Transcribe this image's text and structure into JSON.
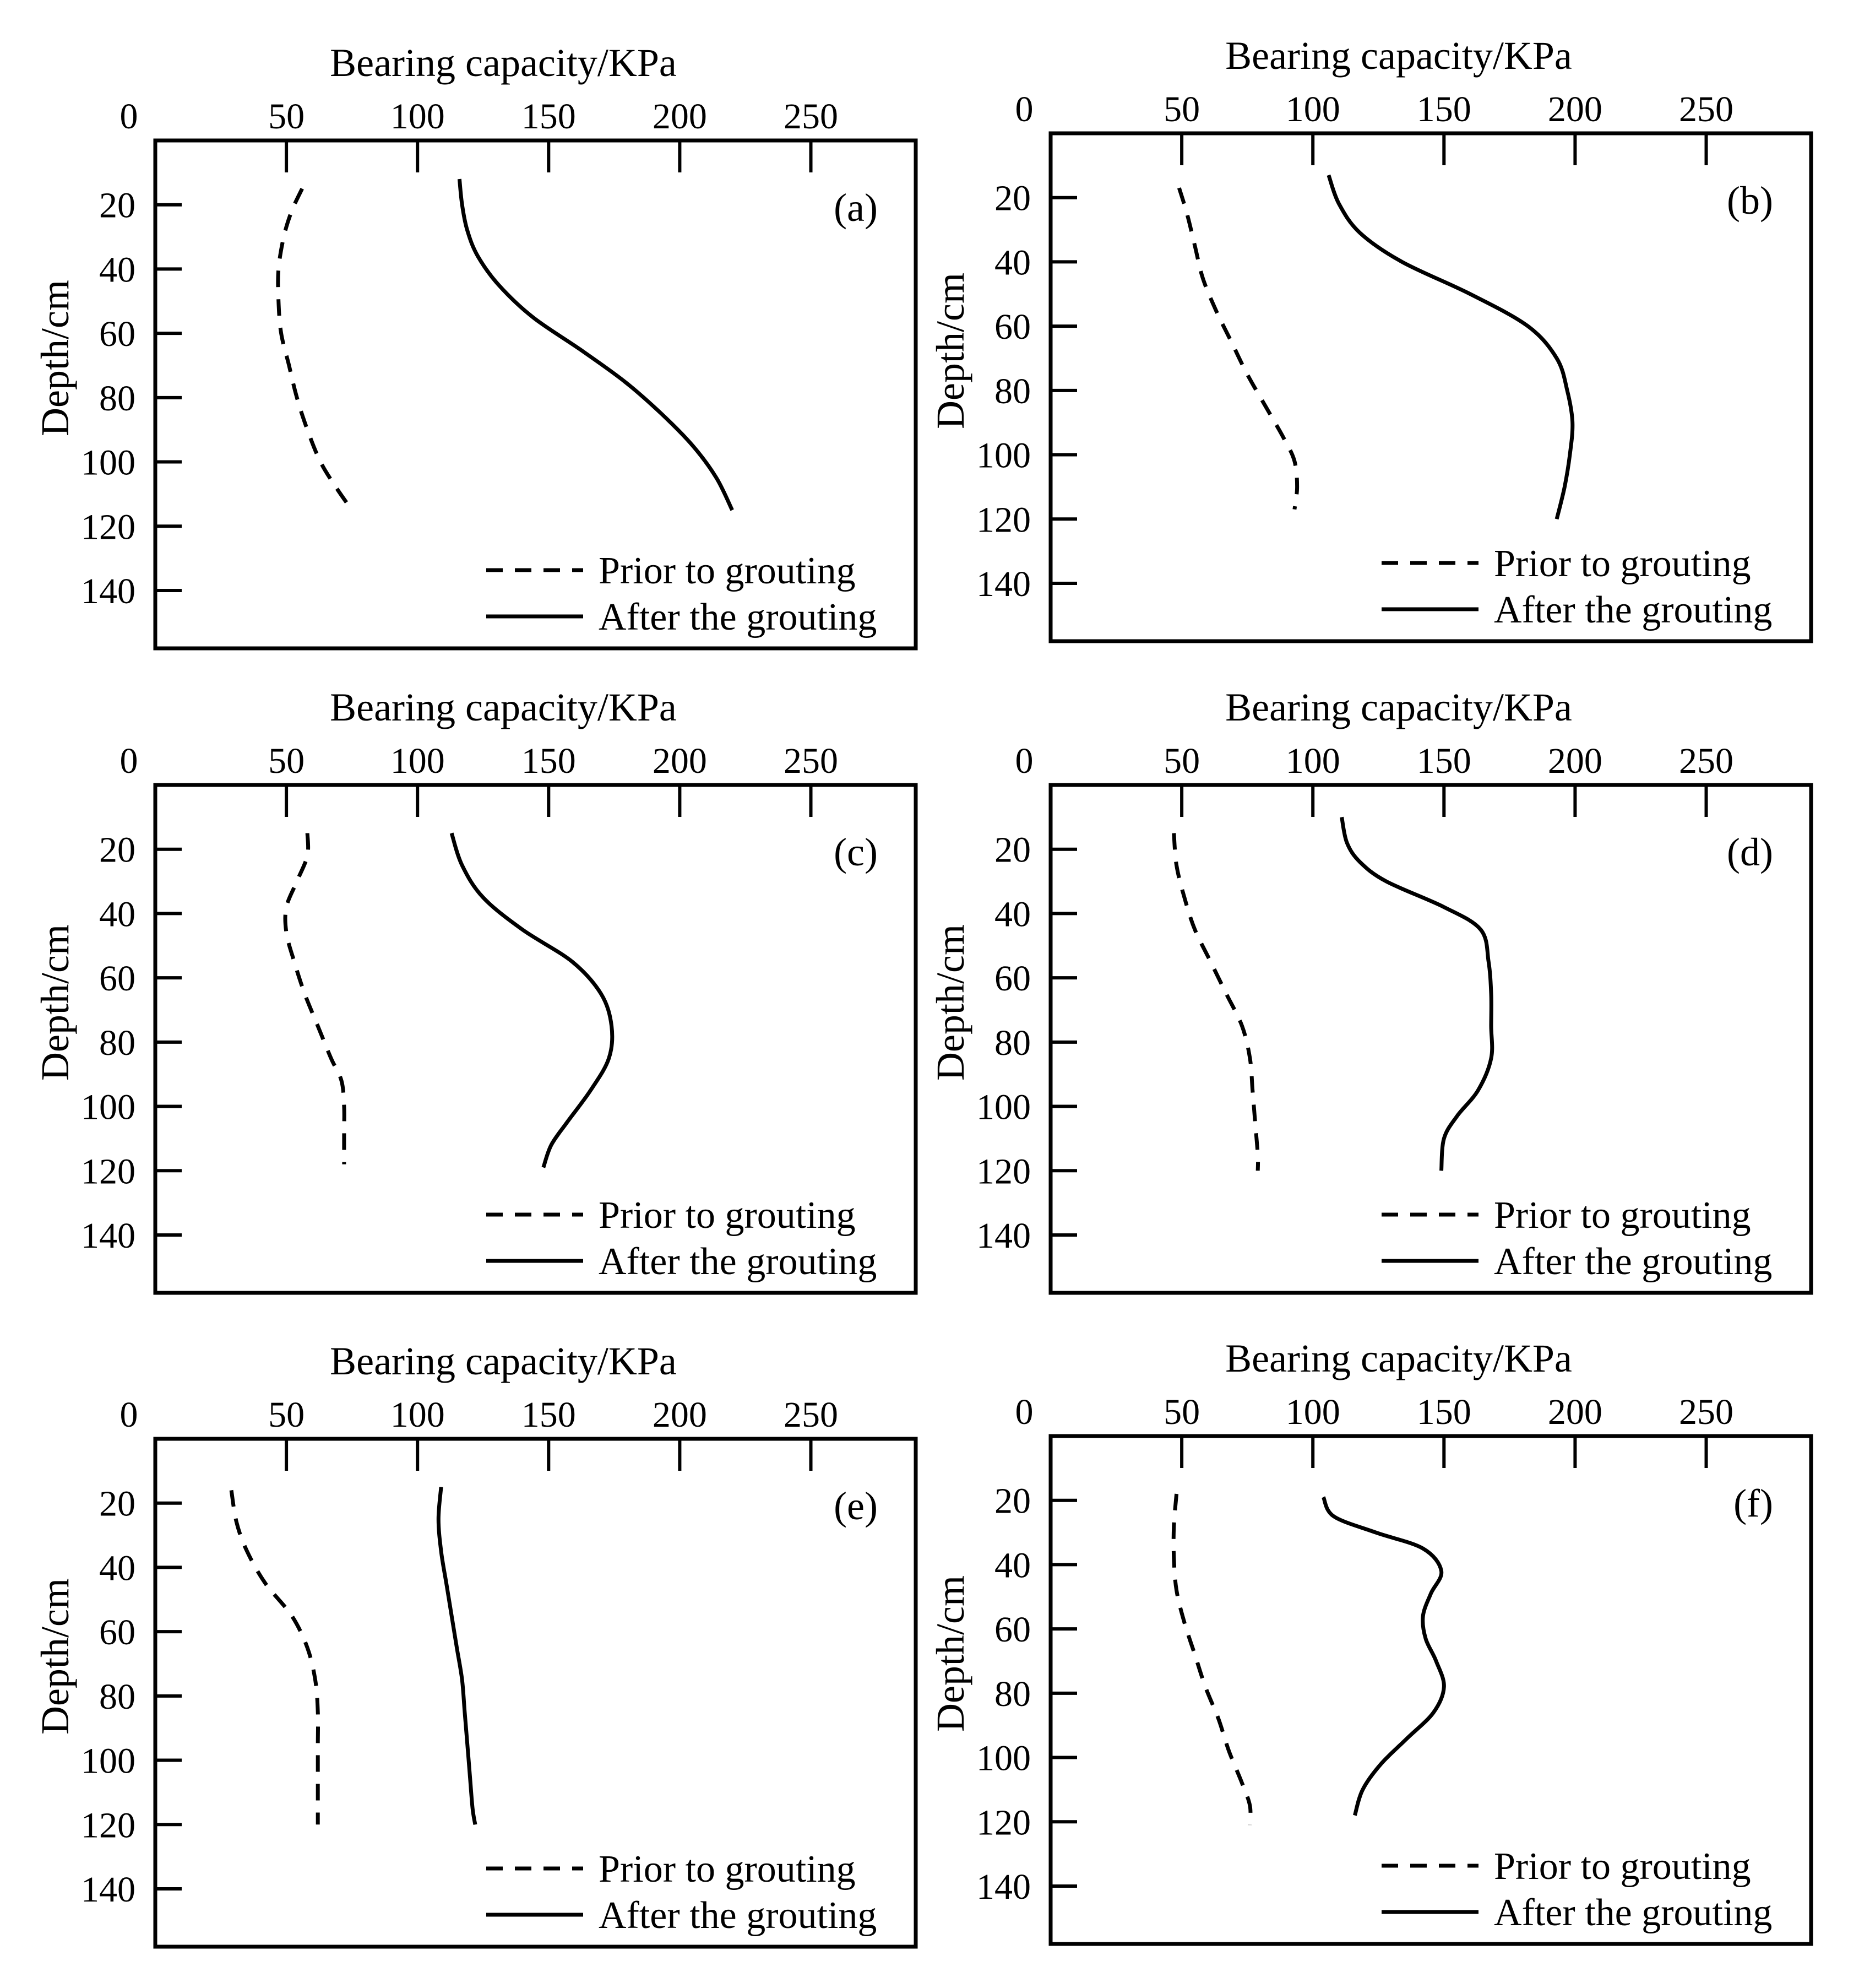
{
  "chart_data": [
    {
      "type": "line",
      "panel_label": "(a)",
      "xlabel": "Bearing capacity/KPa",
      "ylabel": "Depth/cm",
      "x_ticks": [
        0,
        50,
        100,
        150,
        200,
        250
      ],
      "y_ticks": [
        20,
        40,
        60,
        80,
        100,
        120,
        140
      ],
      "xlim": [
        0,
        290
      ],
      "ylim": [
        0,
        158
      ],
      "x_axis_position": "top",
      "y_inverted": true,
      "series": [
        {
          "name": "Prior to grouting",
          "style": "dashed",
          "points": [
            [
              56,
              15
            ],
            [
              52,
              22
            ],
            [
              49,
              30
            ],
            [
              47,
              40
            ],
            [
              47,
              50
            ],
            [
              48,
              60
            ],
            [
              51,
              70
            ],
            [
              54,
              80
            ],
            [
              58,
              90
            ],
            [
              63,
              100
            ],
            [
              69,
              108
            ],
            [
              75,
              115
            ]
          ]
        },
        {
          "name": "After the grouting",
          "style": "solid",
          "points": [
            [
              116,
              12
            ],
            [
              117,
              20
            ],
            [
              119,
              28
            ],
            [
              123,
              36
            ],
            [
              131,
              45
            ],
            [
              144,
              55
            ],
            [
              162,
              65
            ],
            [
              179,
              75
            ],
            [
              193,
              85
            ],
            [
              205,
              95
            ],
            [
              214,
              105
            ],
            [
              220,
              115
            ]
          ]
        }
      ]
    },
    {
      "type": "line",
      "panel_label": "(b)",
      "xlabel": "Bearing capacity/KPa",
      "ylabel": "Depth/cm",
      "x_ticks": [
        0,
        50,
        100,
        150,
        200,
        250
      ],
      "y_ticks": [
        20,
        40,
        60,
        80,
        100,
        120,
        140
      ],
      "xlim": [
        0,
        290
      ],
      "ylim": [
        0,
        158
      ],
      "x_axis_position": "top",
      "y_inverted": true,
      "series": [
        {
          "name": "Prior to grouting",
          "style": "dashed",
          "points": [
            [
              49,
              17
            ],
            [
              52,
              25
            ],
            [
              55,
              35
            ],
            [
              58,
              45
            ],
            [
              63,
              55
            ],
            [
              69,
              65
            ],
            [
              75,
              75
            ],
            [
              82,
              85
            ],
            [
              89,
              95
            ],
            [
              93,
              102
            ],
            [
              94,
              110
            ],
            [
              93,
              117
            ]
          ]
        },
        {
          "name": "After the grouting",
          "style": "solid",
          "points": [
            [
              106,
              13
            ],
            [
              110,
              22
            ],
            [
              118,
              31
            ],
            [
              134,
              40
            ],
            [
              160,
              50
            ],
            [
              182,
              60
            ],
            [
              193,
              70
            ],
            [
              197,
              80
            ],
            [
              199,
              90
            ],
            [
              198,
              100
            ],
            [
              196,
              110
            ],
            [
              193,
              120
            ]
          ]
        }
      ]
    },
    {
      "type": "line",
      "panel_label": "(c)",
      "xlabel": "Bearing capacity/KPa",
      "ylabel": "Depth/cm",
      "x_ticks": [
        0,
        50,
        100,
        150,
        200,
        250
      ],
      "y_ticks": [
        20,
        40,
        60,
        80,
        100,
        120,
        140
      ],
      "xlim": [
        0,
        290
      ],
      "ylim": [
        0,
        158
      ],
      "x_axis_position": "top",
      "y_inverted": true,
      "series": [
        {
          "name": "Prior to grouting",
          "style": "dashed",
          "points": [
            [
              58,
              15
            ],
            [
              58,
              22
            ],
            [
              54,
              30
            ],
            [
              50,
              38
            ],
            [
              50,
              46
            ],
            [
              53,
              55
            ],
            [
              57,
              65
            ],
            [
              62,
              75
            ],
            [
              67,
              85
            ],
            [
              71,
              92
            ],
            [
              72,
              100
            ],
            [
              72,
              108
            ],
            [
              72,
              118
            ]
          ]
        },
        {
          "name": "After the grouting",
          "style": "solid",
          "points": [
            [
              113,
              15
            ],
            [
              117,
              25
            ],
            [
              125,
              35
            ],
            [
              140,
              45
            ],
            [
              159,
              55
            ],
            [
              170,
              65
            ],
            [
              174,
              75
            ],
            [
              173,
              85
            ],
            [
              166,
              95
            ],
            [
              157,
              105
            ],
            [
              151,
              112
            ],
            [
              148,
              119
            ]
          ]
        }
      ]
    },
    {
      "type": "line",
      "panel_label": "(d)",
      "xlabel": "Bearing capacity/KPa",
      "ylabel": "Depth/cm",
      "x_ticks": [
        0,
        50,
        100,
        150,
        200,
        250
      ],
      "y_ticks": [
        20,
        40,
        60,
        80,
        100,
        120,
        140
      ],
      "xlim": [
        0,
        290
      ],
      "ylim": [
        0,
        158
      ],
      "x_axis_position": "top",
      "y_inverted": true,
      "series": [
        {
          "name": "Prior to grouting",
          "style": "dashed",
          "points": [
            [
              47,
              15
            ],
            [
              48,
              25
            ],
            [
              51,
              35
            ],
            [
              55,
              45
            ],
            [
              61,
              55
            ],
            [
              67,
              65
            ],
            [
              73,
              75
            ],
            [
              76,
              85
            ],
            [
              77,
              95
            ],
            [
              78,
              105
            ],
            [
              79,
              115
            ],
            [
              79,
              120
            ]
          ]
        },
        {
          "name": "After the grouting",
          "style": "solid",
          "points": [
            [
              111,
              10
            ],
            [
              113,
              18
            ],
            [
              118,
              24
            ],
            [
              128,
              30
            ],
            [
              150,
              38
            ],
            [
              164,
              45
            ],
            [
              167,
              55
            ],
            [
              168,
              65
            ],
            [
              168,
              75
            ],
            [
              168,
              85
            ],
            [
              163,
              95
            ],
            [
              155,
              103
            ],
            [
              150,
              110
            ],
            [
              149,
              120
            ]
          ]
        }
      ]
    },
    {
      "type": "line",
      "panel_label": "(e)",
      "xlabel": "Bearing capacity/KPa",
      "ylabel": "Depth/cm",
      "x_ticks": [
        0,
        50,
        100,
        150,
        200,
        250
      ],
      "y_ticks": [
        20,
        40,
        60,
        80,
        100,
        120,
        140
      ],
      "xlim": [
        0,
        290
      ],
      "ylim": [
        0,
        158
      ],
      "x_axis_position": "top",
      "y_inverted": true,
      "series": [
        {
          "name": "Prior to grouting",
          "style": "dashed",
          "points": [
            [
              29,
              16
            ],
            [
              31,
              26
            ],
            [
              35,
              35
            ],
            [
              42,
              45
            ],
            [
              52,
              55
            ],
            [
              58,
              65
            ],
            [
              61,
              75
            ],
            [
              62,
              85
            ],
            [
              62,
              95
            ],
            [
              62,
              105
            ],
            [
              62,
              115
            ],
            [
              62,
              120
            ]
          ]
        },
        {
          "name": "After the grouting",
          "style": "solid",
          "points": [
            [
              109,
              15
            ],
            [
              108,
              25
            ],
            [
              109,
              35
            ],
            [
              111,
              45
            ],
            [
              113,
              55
            ],
            [
              115,
              65
            ],
            [
              117,
              75
            ],
            [
              118,
              85
            ],
            [
              119,
              95
            ],
            [
              120,
              105
            ],
            [
              121,
              115
            ],
            [
              122,
              120
            ]
          ]
        }
      ]
    },
    {
      "type": "line",
      "panel_label": "(f)",
      "xlabel": "Bearing capacity/KPa",
      "ylabel": "Depth/cm",
      "x_ticks": [
        0,
        50,
        100,
        150,
        200,
        250
      ],
      "y_ticks": [
        20,
        40,
        60,
        80,
        100,
        120,
        140
      ],
      "xlim": [
        0,
        290
      ],
      "ylim": [
        0,
        158
      ],
      "x_axis_position": "top",
      "y_inverted": true,
      "series": [
        {
          "name": "Prior to grouting",
          "style": "dashed",
          "points": [
            [
              48,
              18
            ],
            [
              47,
              28
            ],
            [
              47,
              38
            ],
            [
              48,
              48
            ],
            [
              51,
              58
            ],
            [
              55,
              68
            ],
            [
              59,
              78
            ],
            [
              64,
              88
            ],
            [
              68,
              98
            ],
            [
              73,
              108
            ],
            [
              76,
              115
            ],
            [
              76,
              121
            ]
          ]
        },
        {
          "name": "After the grouting",
          "style": "solid",
          "points": [
            [
              104,
              19
            ],
            [
              108,
              25
            ],
            [
              124,
              30
            ],
            [
              142,
              35
            ],
            [
              149,
              42
            ],
            [
              145,
              49
            ],
            [
              142,
              56
            ],
            [
              143,
              63
            ],
            [
              147,
              70
            ],
            [
              150,
              78
            ],
            [
              146,
              86
            ],
            [
              136,
              94
            ],
            [
              126,
              102
            ],
            [
              119,
              110
            ],
            [
              116,
              118
            ]
          ]
        }
      ]
    }
  ]
}
